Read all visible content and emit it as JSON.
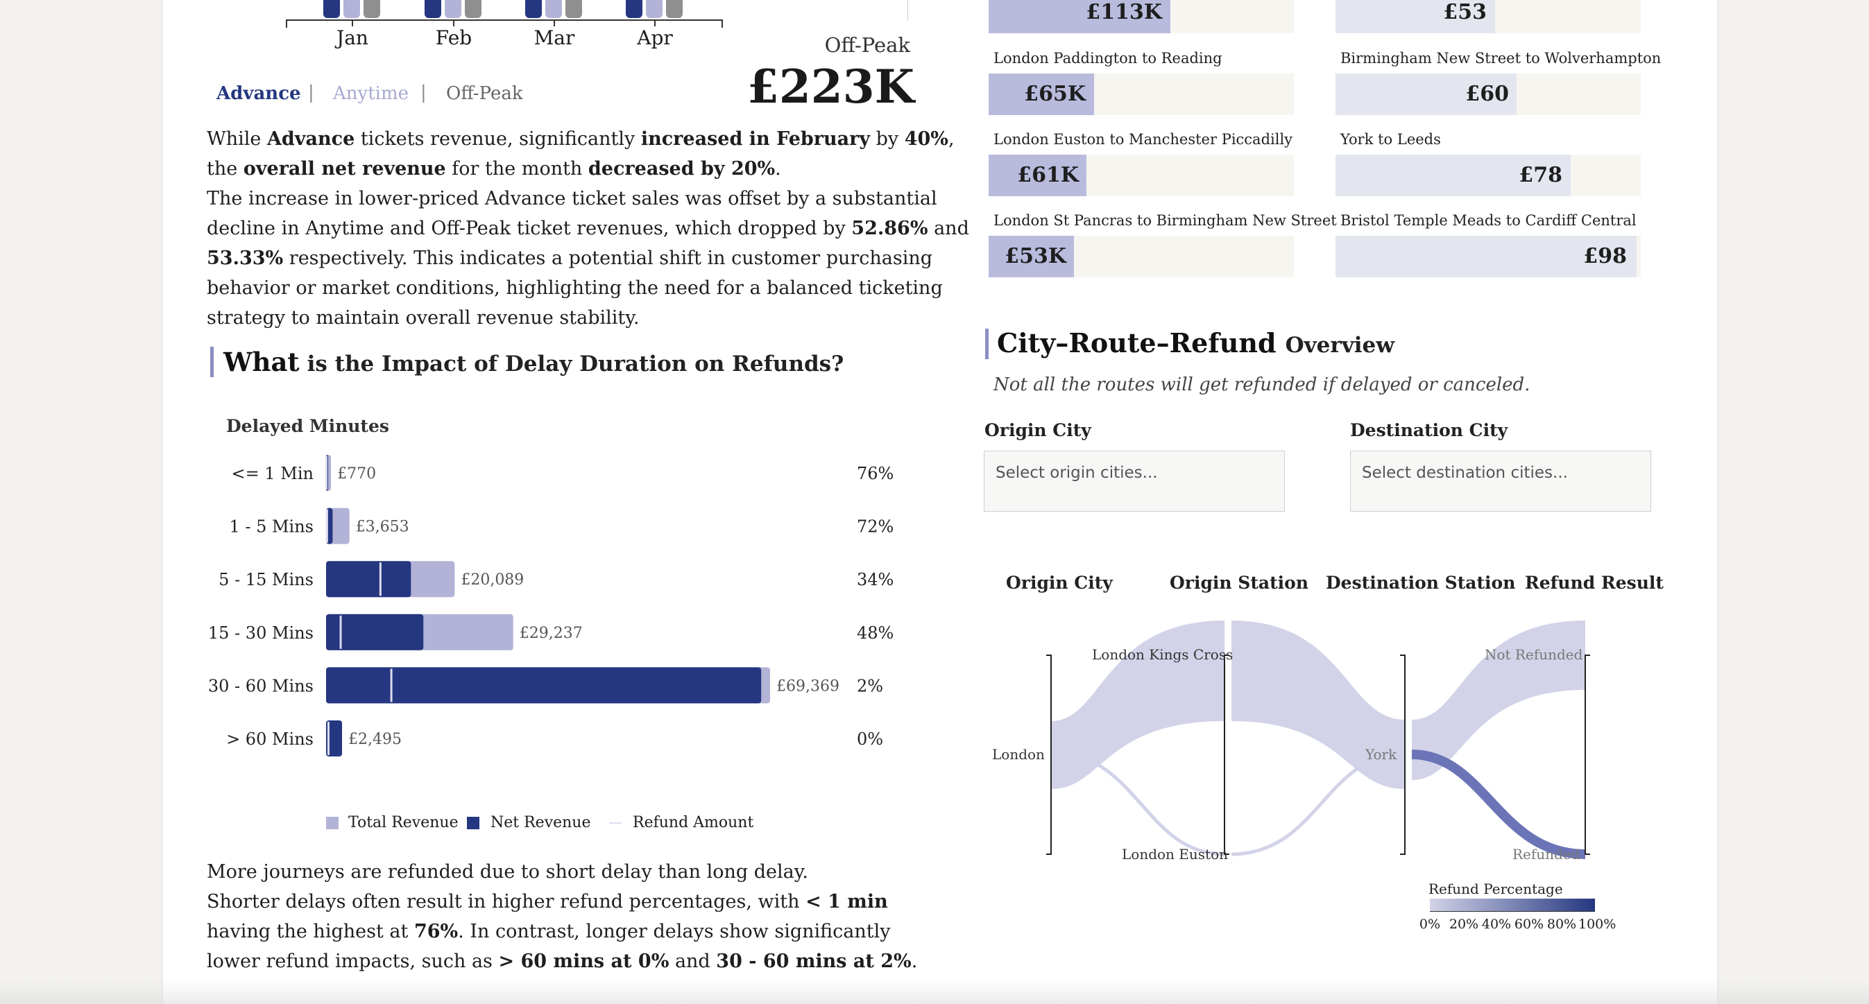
{
  "colors": {
    "navy": "#253780",
    "lavender": "#b2b3d7",
    "grey": "#8f8f8f",
    "card_bg": "#f6f5f0",
    "card_fill_purple": "#b9bbdd",
    "card_fill_light": "#e3e6ef",
    "sankey_flow": "#d2d3e8",
    "sankey_refund": "#6b74b6"
  },
  "monthly_chart": {
    "months": [
      "Jan",
      "Feb",
      "Mar",
      "Apr"
    ]
  },
  "offpeak": {
    "label": "Off-Peak",
    "value": "£223K"
  },
  "tabs": [
    {
      "label": "Advance"
    },
    {
      "label": "Anytime"
    },
    {
      "label": "Off-Peak"
    }
  ],
  "tab_separator": "|",
  "revenue_paragraph": {
    "p1": "While ",
    "b1": "Advance",
    "p2": " tickets revenue, significantly ",
    "b2": "increased in February",
    "p3": " by ",
    "b3": "40%",
    "p4": ", the ",
    "b4": "overall net revenue",
    "p5": " for the month ",
    "b5": "decreased by 20%",
    "p6": ".",
    "p7": "The increase in lower-priced Advance ticket sales was offset by a substantial decline in Anytime and Off-Peak ticket revenues, which dropped by ",
    "b6": "52.86%",
    "p8": " and ",
    "b7": "53.33%",
    "p9": " respectively. This indicates a potential shift in customer purchasing behavior or market conditions, highlighting the need for a balanced ticketing strategy to maintain overall revenue stability."
  },
  "delay_section": {
    "title_bold": "What",
    "title_rest": "is the Impact of Delay Duration on Refunds?",
    "axis_title": "Delayed Minutes"
  },
  "chart_data": {
    "type": "bar",
    "categories": [
      "<= 1 Min",
      "1 - 5 Mins",
      "5 - 15 Mins",
      "15 - 30 Mins",
      "30 - 60 Mins",
      "> 60 Mins"
    ],
    "series": [
      {
        "name": "Total Revenue",
        "values": [
          770,
          3653,
          20089,
          29237,
          69369,
          2495
        ]
      },
      {
        "name": "Net Revenue",
        "values": [
          185,
          1023,
          13259,
          15203,
          67982,
          2495
        ]
      },
      {
        "name": "Refund Amount",
        "values": [
          585,
          2630,
          6830,
          14034,
          1387,
          0
        ]
      }
    ],
    "total_labels": [
      "£770",
      "£3,653",
      "£20,089",
      "£29,237",
      "£69,369",
      "£2,495"
    ],
    "refund_percent_labels": [
      "76%",
      "72%",
      "34%",
      "48%",
      "2%",
      "0%"
    ]
  },
  "legend": {
    "total": "Total Revenue",
    "net": "Net Revenue",
    "refund": "Refund Amount"
  },
  "delay_paragraph": {
    "line1": "More journeys are refunded due to short delay than long delay.",
    "p1": "Shorter delays often result in higher refund percentages, with ",
    "b1": "< 1 min",
    "p2": " having the highest at ",
    "b2": "76%",
    "p3": ". In contrast, longer delays show significantly lower refund impacts, such as ",
    "b3": "> 60 mins at 0%",
    "p4": " and ",
    "b4": "30 - 60 mins at 2%",
    "p5": "."
  },
  "top_routes_revenue": [
    {
      "route": "",
      "value": "£113K",
      "share": 0.62
    },
    {
      "route": "London Paddington to Reading",
      "value": "£65K",
      "share": 0.35
    },
    {
      "route": "London Euston to Manchester Piccadilly",
      "value": "£61K",
      "share": 0.32
    },
    {
      "route": "London St Pancras to Birmingham New Street",
      "value": "£53K",
      "share": 0.28
    }
  ],
  "top_routes_price": [
    {
      "route": "",
      "value": "£53",
      "share": 0.52
    },
    {
      "route": "Birmingham New Street to Wolverhampton",
      "value": "£60",
      "share": 0.59
    },
    {
      "route": "York to Leeds",
      "value": "£78",
      "share": 0.77
    },
    {
      "route": "Bristol Temple Meads to Cardiff Central",
      "value": "£98",
      "share": 0.97
    }
  ],
  "overview": {
    "title_bold": "City–Route–Refund",
    "title_rest": "Overview",
    "subtitle": "Not all the routes will get refunded if delayed or canceled.",
    "origin_label": "Origin City",
    "origin_placeholder": "Select origin cities...",
    "dest_label": "Destination City",
    "dest_placeholder": "Select destination cities..."
  },
  "sankey": {
    "headers": [
      "Origin City",
      "Origin Station",
      "Destination Station",
      "Refund Result"
    ],
    "nodes": {
      "origin_city": "London",
      "station_a": "London Kings Cross",
      "station_b": "London Euston",
      "dest_station": "York",
      "not_refunded": "Not Refunded",
      "refunded": "Refunded"
    },
    "scale_title": "Refund Percentage",
    "scale_ticks": [
      "0%",
      "20%",
      "40%",
      "60%",
      "80%",
      "100%"
    ]
  }
}
